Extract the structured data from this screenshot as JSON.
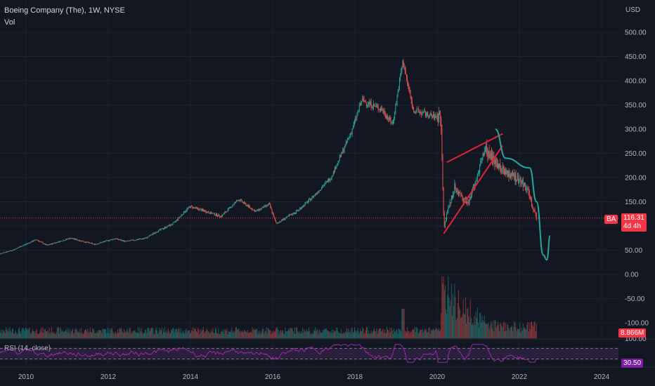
{
  "header": {
    "symbol_line": "Boeing Company (The), 1W, NYSE",
    "volume_label": "Vol"
  },
  "price_axis": {
    "currency": "USD",
    "ticks": [
      "500.00",
      "450.00",
      "400.00",
      "350.00",
      "300.00",
      "250.00",
      "200.00",
      "150.00",
      "100.00",
      "50.00",
      "0.00",
      "-50.00",
      "-100.00"
    ]
  },
  "rsi_axis": {
    "ticks": [
      "100.00"
    ]
  },
  "time_axis": {
    "ticks": [
      "2010",
      "2012",
      "2014",
      "2016",
      "2018",
      "2020",
      "2022",
      "2024"
    ]
  },
  "badges": {
    "price_symbol": "BA",
    "last_price": "116.31",
    "countdown": "4d 4h",
    "volume_value": "8.866M",
    "rsi_value": "30.50"
  },
  "rsi": {
    "label": "RSI (14, close)"
  },
  "colors": {
    "background": "#131722",
    "up": "#26a69a",
    "down": "#ef5350",
    "price_line": "#f23645",
    "trendline": "#e5213a",
    "projection": "#26a69a",
    "rsi_line": "#9c27b0",
    "rsi_band": "#2a1f3d",
    "volume_badge": "#f23645",
    "rsi_badge": "#7b1fa2"
  },
  "chart_data": {
    "type": "candlestick",
    "interval": "1W",
    "ylim": [
      -100,
      520
    ],
    "price_path": [
      [
        "2009-03-01",
        38
      ],
      [
        "2009-09-01",
        50
      ],
      [
        "2010-04-01",
        72
      ],
      [
        "2010-07-01",
        60
      ],
      [
        "2011-02-01",
        75
      ],
      [
        "2011-09-01",
        62
      ],
      [
        "2012-03-01",
        74
      ],
      [
        "2012-06-01",
        68
      ],
      [
        "2012-12-01",
        75
      ],
      [
        "2013-03-01",
        88
      ],
      [
        "2013-08-01",
        105
      ],
      [
        "2013-12-01",
        135
      ],
      [
        "2014-01-01",
        140
      ],
      [
        "2014-10-01",
        120
      ],
      [
        "2015-03-01",
        155
      ],
      [
        "2015-08-01",
        130
      ],
      [
        "2015-12-01",
        145
      ],
      [
        "2016-02-01",
        105
      ],
      [
        "2016-08-01",
        130
      ],
      [
        "2016-12-01",
        155
      ],
      [
        "2017-06-01",
        200
      ],
      [
        "2017-12-01",
        295
      ],
      [
        "2018-03-01",
        360
      ],
      [
        "2018-09-01",
        340
      ],
      [
        "2018-12-01",
        310
      ],
      [
        "2019-03-01",
        440
      ],
      [
        "2019-06-01",
        340
      ],
      [
        "2019-12-01",
        325
      ],
      [
        "2020-02-01",
        330
      ],
      [
        "2020-03-01",
        100
      ],
      [
        "2020-06-01",
        180
      ],
      [
        "2020-10-01",
        145
      ],
      [
        "2021-03-01",
        260
      ],
      [
        "2021-08-01",
        215
      ],
      [
        "2021-12-01",
        200
      ],
      [
        "2022-03-01",
        180
      ],
      [
        "2022-06-01",
        116
      ]
    ],
    "volume_spikes": [
      [
        "2020-03-01",
        "max"
      ],
      [
        "2019-03-01",
        "high"
      ]
    ],
    "last_close": 116.31,
    "annotations": {
      "wedge_lower": [
        [
          "2020-03-01",
          85
        ],
        [
          "2021-08-01",
          265
        ]
      ],
      "wedge_upper": [
        [
          "2020-04-01",
          232
        ],
        [
          "2021-08-01",
          290
        ]
      ],
      "projection": [
        [
          "2021-06-01",
          300
        ],
        [
          "2021-09-01",
          240
        ],
        [
          "2022-04-01",
          220
        ],
        [
          "2022-06-01",
          150
        ],
        [
          "2022-08-01",
          40
        ],
        [
          "2022-09-01",
          30
        ],
        [
          "2022-10-01",
          80
        ]
      ]
    },
    "rsi_levels": [
      70,
      30
    ],
    "rsi_last": 30.5
  }
}
